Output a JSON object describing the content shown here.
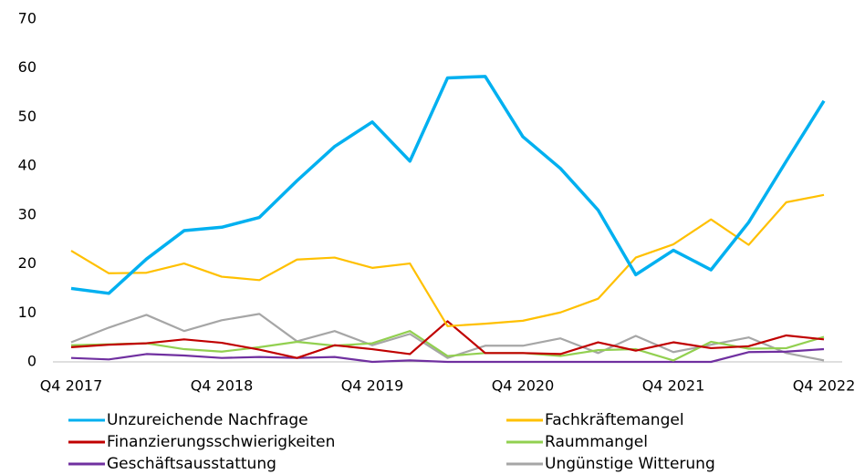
{
  "chart_data": {
    "type": "line",
    "categories": [
      "Q4 2017",
      null,
      null,
      null,
      "Q4 2018",
      null,
      null,
      null,
      "Q4 2019",
      null,
      null,
      null,
      "Q4 2020",
      null,
      null,
      null,
      "Q4 2021",
      null,
      null,
      null,
      "Q4 2022"
    ],
    "ylim": [
      0,
      70
    ],
    "yticks": [
      0,
      10,
      20,
      30,
      40,
      50,
      60,
      70
    ],
    "grid": false,
    "legend": "bottom",
    "series": [
      {
        "name": "Unzureichende Nachfrage",
        "color": "#00b0f0",
        "values": [
          15,
          14,
          21,
          26.8,
          27.5,
          29.5,
          37,
          44,
          49,
          41,
          58,
          58.3,
          46,
          39.5,
          31,
          17.8,
          22.8,
          18.8,
          28.5,
          41,
          53.3
        ]
      },
      {
        "name": "Fachkräftemangel",
        "color": "#ffc000",
        "values": [
          22.7,
          18.1,
          18.2,
          20.1,
          17.4,
          16.7,
          20.9,
          21.3,
          19.2,
          20.1,
          7.3,
          7.8,
          8.4,
          10.1,
          12.9,
          21.3,
          24,
          29.1,
          23.9,
          32.6,
          34.1
        ]
      },
      {
        "name": "Finanzierungsschwierigkeiten",
        "color": "#c00000",
        "values": [
          3,
          3.5,
          3.8,
          4.6,
          3.9,
          2.5,
          0.8,
          3.4,
          2.6,
          1.6,
          8.3,
          1.8,
          1.8,
          1.6,
          4,
          2.3,
          4,
          2.8,
          3.2,
          5.4,
          4.6
        ]
      },
      {
        "name": "Raummangel",
        "color": "#92d050",
        "values": [
          3.4,
          3.6,
          3.8,
          2.6,
          2.1,
          3,
          4.1,
          3.3,
          3.8,
          6.3,
          1.2,
          1.8,
          1.8,
          1.2,
          2.4,
          2.6,
          0.3,
          4.1,
          2.7,
          2.8,
          5.1
        ]
      },
      {
        "name": "Geschäftsausstattung",
        "color": "#7030a0",
        "values": [
          0.8,
          0.5,
          1.6,
          1.3,
          0.8,
          1,
          0.8,
          1,
          0,
          0.3,
          0,
          0,
          0,
          0,
          0,
          0,
          0,
          0,
          2,
          2.1,
          2.6
        ]
      },
      {
        "name": "Ungünstige Witterung",
        "color": "#a6a6a6",
        "values": [
          4,
          7,
          9.6,
          6.3,
          8.5,
          9.8,
          4.2,
          6.3,
          3.4,
          5.7,
          0.8,
          3.3,
          3.3,
          4.8,
          1.8,
          5.3,
          2,
          3.5,
          5,
          1.8,
          0.3
        ]
      }
    ]
  }
}
